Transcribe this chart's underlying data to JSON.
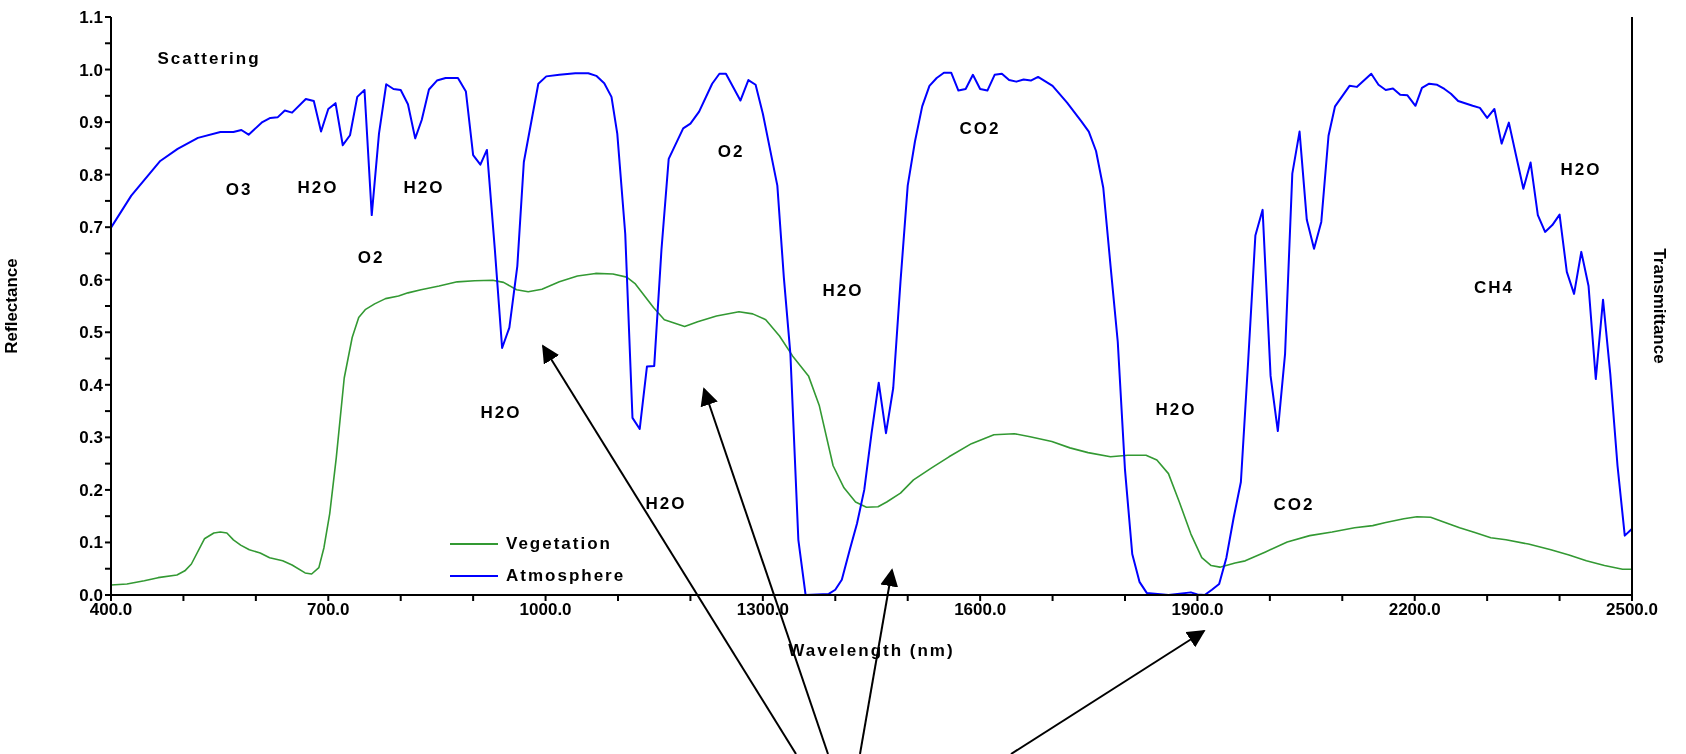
{
  "chart_data": {
    "type": "line",
    "xlabel": "Wavelength (nm)",
    "ylabel": "Reflectance",
    "y2label": "Transmittance",
    "xlim": [
      400,
      2500
    ],
    "xticks": [
      {
        "value": 400,
        "label": "400.0"
      },
      {
        "value": 500,
        "label": null
      },
      {
        "value": 600,
        "label": null
      },
      {
        "value": 700,
        "label": "700.0"
      },
      {
        "value": 800,
        "label": null
      },
      {
        "value": 900,
        "label": null
      },
      {
        "value": 1000,
        "label": "1000.0"
      },
      {
        "value": 1100,
        "label": null
      },
      {
        "value": 1200,
        "label": null
      },
      {
        "value": 1300,
        "label": "1300.0"
      },
      {
        "value": 1400,
        "label": null
      },
      {
        "value": 1500,
        "label": null
      },
      {
        "value": 1600,
        "label": "1600.0"
      },
      {
        "value": 1700,
        "label": null
      },
      {
        "value": 1800,
        "label": null
      },
      {
        "value": 1900,
        "label": "1900.0"
      },
      {
        "value": 2000,
        "label": null
      },
      {
        "value": 2100,
        "label": null
      },
      {
        "value": 2200,
        "label": "2200.0"
      },
      {
        "value": 2300,
        "label": null
      },
      {
        "value": 2400,
        "label": null
      },
      {
        "value": 2500,
        "label": "2500.0"
      }
    ],
    "ylim": [
      0,
      1.1
    ],
    "yticks": [
      {
        "value": 0,
        "label": "0.0"
      },
      {
        "value": 0.05,
        "label": null
      },
      {
        "value": 0.1,
        "label": "0.1"
      },
      {
        "value": 0.15,
        "label": null
      },
      {
        "value": 0.2,
        "label": "0.2"
      },
      {
        "value": 0.25,
        "label": null
      },
      {
        "value": 0.3,
        "label": "0.3"
      },
      {
        "value": 0.35,
        "label": null
      },
      {
        "value": 0.4,
        "label": "0.4"
      },
      {
        "value": 0.45,
        "label": null
      },
      {
        "value": 0.5,
        "label": "0.5"
      },
      {
        "value": 0.55,
        "label": null
      },
      {
        "value": 0.6,
        "label": "0.6"
      },
      {
        "value": 0.65,
        "label": null
      },
      {
        "value": 0.7,
        "label": "0.7"
      },
      {
        "value": 0.75,
        "label": null
      },
      {
        "value": 0.8,
        "label": "0.8"
      },
      {
        "value": 0.85,
        "label": null
      },
      {
        "value": 0.9,
        "label": "0.9"
      },
      {
        "value": 0.95,
        "label": null
      },
      {
        "value": 1,
        "label": "1.0"
      },
      {
        "value": 1.05,
        "label": null
      },
      {
        "value": 1.1,
        "label": "1.1"
      }
    ],
    "legend": "bottom left",
    "marker": "none",
    "line_style": "solid",
    "series": [
      {
        "name": "Vegetation",
        "color": "#339933",
        "x": [
          400,
          422,
          446,
          465,
          491,
          502,
          511,
          529,
          542,
          551,
          560,
          569,
          579,
          591,
          606,
          619,
          637,
          650,
          668,
          677,
          687,
          694,
          702,
          711,
          722,
          733,
          742,
          751,
          764,
          779,
          797,
          810,
          828,
          853,
          878,
          902,
          927,
          942,
          960,
          976,
          995,
          1019,
          1044,
          1069,
          1093,
          1112,
          1124,
          1149,
          1164,
          1192,
          1210,
          1236,
          1267,
          1286,
          1304,
          1323,
          1341,
          1363,
          1378,
          1397,
          1412,
          1428,
          1443,
          1459,
          1471,
          1490,
          1508,
          1533,
          1557,
          1588,
          1619,
          1647,
          1669,
          1699,
          1724,
          1749,
          1780,
          1804,
          1829,
          1844,
          1860,
          1875,
          1891,
          1906,
          1919,
          1931,
          1952,
          1966,
          1994,
          2024,
          2055,
          2086,
          2117,
          2142,
          2160,
          2185,
          2203,
          2222,
          2240,
          2262,
          2283,
          2305,
          2326,
          2357,
          2388,
          2413,
          2437,
          2462,
          2487,
          2500
        ],
        "values": [
          0.019,
          0.021,
          0.027,
          0.033,
          0.038,
          0.046,
          0.059,
          0.107,
          0.118,
          0.12,
          0.118,
          0.105,
          0.095,
          0.086,
          0.08,
          0.071,
          0.065,
          0.057,
          0.042,
          0.04,
          0.052,
          0.09,
          0.155,
          0.261,
          0.413,
          0.49,
          0.528,
          0.543,
          0.554,
          0.564,
          0.569,
          0.575,
          0.581,
          0.588,
          0.596,
          0.598,
          0.599,
          0.595,
          0.581,
          0.577,
          0.582,
          0.596,
          0.607,
          0.612,
          0.611,
          0.605,
          0.592,
          0.547,
          0.524,
          0.511,
          0.52,
          0.531,
          0.539,
          0.535,
          0.524,
          0.493,
          0.455,
          0.417,
          0.36,
          0.246,
          0.204,
          0.177,
          0.167,
          0.168,
          0.177,
          0.194,
          0.219,
          0.242,
          0.263,
          0.288,
          0.305,
          0.307,
          0.301,
          0.292,
          0.28,
          0.271,
          0.263,
          0.266,
          0.266,
          0.257,
          0.231,
          0.177,
          0.116,
          0.071,
          0.056,
          0.053,
          0.061,
          0.065,
          0.082,
          0.101,
          0.113,
          0.12,
          0.128,
          0.132,
          0.138,
          0.145,
          0.149,
          0.148,
          0.139,
          0.128,
          0.119,
          0.109,
          0.105,
          0.097,
          0.086,
          0.076,
          0.065,
          0.056,
          0.049,
          0.049
        ]
      },
      {
        "name": "Atmosphere",
        "color": "#0000ff",
        "x": [
          400,
          428,
          468,
          492,
          520,
          551,
          569,
          580,
          590,
          609,
          620,
          630,
          640,
          650,
          669,
          680,
          690,
          700,
          710,
          720,
          730,
          740,
          750,
          760,
          770,
          780,
          790,
          800,
          810,
          820,
          829,
          839,
          850,
          862,
          879,
          890,
          900,
          910,
          919,
          930,
          940,
          950,
          961,
          970,
          990,
          1001,
          1019,
          1041,
          1059,
          1070,
          1081,
          1091,
          1099,
          1110,
          1120,
          1130,
          1140,
          1150,
          1160,
          1170,
          1190,
          1200,
          1212,
          1230,
          1240,
          1249,
          1269,
          1280,
          1290,
          1300,
          1320,
          1329,
          1338,
          1349,
          1359,
          1391,
          1400,
          1409,
          1420,
          1430,
          1440,
          1450,
          1460,
          1470,
          1480,
          1490,
          1500,
          1510,
          1520,
          1530,
          1540,
          1550,
          1560,
          1570,
          1580,
          1590,
          1600,
          1610,
          1620,
          1630,
          1640,
          1650,
          1660,
          1670,
          1680,
          1700,
          1720,
          1740,
          1750,
          1760,
          1770,
          1780,
          1790,
          1800,
          1810,
          1820,
          1830,
          1860,
          1891,
          1900,
          1910,
          1920,
          1930,
          1940,
          1950,
          1960,
          1970,
          1980,
          1990,
          2001,
          2011,
          2021,
          2031,
          2041,
          2051,
          2061,
          2071,
          2081,
          2090,
          2110,
          2120,
          2140,
          2150,
          2160,
          2170,
          2180,
          2190,
          2201,
          2210,
          2220,
          2231,
          2241,
          2250,
          2260,
          2280,
          2290,
          2300,
          2310,
          2320,
          2330,
          2340,
          2350,
          2360,
          2370,
          2380,
          2390,
          2400,
          2410,
          2420,
          2430,
          2440,
          2450,
          2460,
          2470,
          2480,
          2490,
          2500
        ],
        "values": [
          0.699,
          0.76,
          0.826,
          0.849,
          0.87,
          0.881,
          0.881,
          0.885,
          0.876,
          0.9,
          0.908,
          0.909,
          0.922,
          0.918,
          0.944,
          0.94,
          0.882,
          0.925,
          0.936,
          0.856,
          0.875,
          0.948,
          0.961,
          0.723,
          0.878,
          0.972,
          0.963,
          0.961,
          0.934,
          0.869,
          0.904,
          0.962,
          0.979,
          0.984,
          0.984,
          0.958,
          0.837,
          0.819,
          0.847,
          0.657,
          0.47,
          0.509,
          0.626,
          0.824,
          0.973,
          0.987,
          0.99,
          0.993,
          0.993,
          0.988,
          0.974,
          0.948,
          0.878,
          0.687,
          0.337,
          0.316,
          0.435,
          0.436,
          0.657,
          0.83,
          0.888,
          0.897,
          0.92,
          0.973,
          0.992,
          0.992,
          0.941,
          0.98,
          0.971,
          0.916,
          0.779,
          0.604,
          0.459,
          0.105,
          0,
          0.002,
          0.01,
          0.029,
          0.086,
          0.136,
          0.2,
          0.307,
          0.404,
          0.308,
          0.394,
          0.596,
          0.779,
          0.863,
          0.93,
          0.969,
          0.984,
          0.994,
          0.994,
          0.96,
          0.963,
          0.99,
          0.963,
          0.96,
          0.99,
          0.992,
          0.98,
          0.977,
          0.981,
          0.979,
          0.986,
          0.969,
          0.937,
          0.901,
          0.882,
          0.845,
          0.775,
          0.627,
          0.482,
          0.238,
          0.078,
          0.025,
          0.004,
          0,
          0.005,
          0.001,
          0,
          0.01,
          0.021,
          0.071,
          0.147,
          0.215,
          0.444,
          0.684,
          0.733,
          0.417,
          0.312,
          0.459,
          0.802,
          0.882,
          0.714,
          0.659,
          0.71,
          0.874,
          0.93,
          0.969,
          0.967,
          0.992,
          0.971,
          0.961,
          0.964,
          0.952,
          0.951,
          0.931,
          0.965,
          0.973,
          0.971,
          0.963,
          0.954,
          0.94,
          0.931,
          0.927,
          0.908,
          0.925,
          0.859,
          0.899,
          0.836,
          0.773,
          0.823,
          0.723,
          0.691,
          0.704,
          0.724,
          0.615,
          0.573,
          0.653,
          0.588,
          0.411,
          0.562,
          0.421,
          0.246,
          0.113,
          0.126
        ]
      }
    ],
    "annotations": [
      "Scattering",
      "O3",
      "H2O",
      "O2",
      "H2O",
      "H2O",
      "H2O",
      "O2",
      "H2O",
      "CO2",
      "H2O",
      "CO2",
      "CH4",
      "H2O"
    ]
  }
}
